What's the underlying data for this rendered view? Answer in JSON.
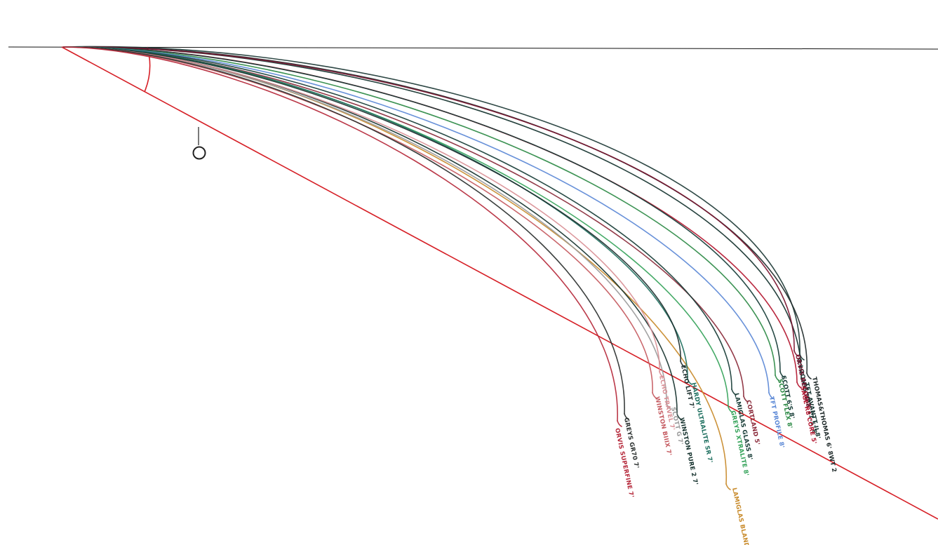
{
  "diagram": {
    "angle_label": "O",
    "colors": {
      "baseline": "#111111",
      "incline": "#d61f26",
      "callout": "#222222"
    },
    "rods": [
      {
        "id": "r1",
        "label": "G.LOOMIS NRX 11.5' 8",
        "color": "#1d3a36"
      },
      {
        "id": "r2",
        "label": "THOMAS&THOMAS 6' 8WT 2",
        "color": "#1f2a2a"
      },
      {
        "id": "r3",
        "label": "TFT AVANTT II 8'",
        "color": "#13322e"
      },
      {
        "id": "r4",
        "label": "ORVIS RECON 8'",
        "color": "#7a1530"
      },
      {
        "id": "r5",
        "label": "SAGE R8 CORE 5'",
        "color": "#b3162f"
      },
      {
        "id": "r6",
        "label": "SCOTT 6'S 8'",
        "color": "#153b36"
      },
      {
        "id": "r7",
        "label": "SCOTT FLEX 8'",
        "color": "#2c8a45"
      },
      {
        "id": "r8",
        "label": "TFT PROFILE 8'",
        "color": "#5b88d6"
      },
      {
        "id": "r9",
        "label": "CORTLAND 5'",
        "color": "#8a2a3a"
      },
      {
        "id": "r10",
        "label": "LAMIGLAS GLASS 8'",
        "color": "#173c36"
      },
      {
        "id": "r11",
        "label": "GREYS XTRALITE 8'",
        "color": "#35a35a"
      },
      {
        "id": "r12",
        "label": "LAMIGLAS BLAND CC",
        "color": "#c88a2a"
      },
      {
        "id": "r13",
        "label": "HARDY ULTRALITE SR 7'",
        "color": "#1f7060"
      },
      {
        "id": "r14",
        "label": "ECHO LIFT 7'",
        "color": "#1b2e2c"
      },
      {
        "id": "r15",
        "label": "WINSTON PURE 2 7'",
        "color": "#17332f"
      },
      {
        "id": "r16",
        "label": "SCOTT G 7'",
        "color": "#9a9a9a"
      },
      {
        "id": "r17",
        "label": "ECHO TRAVEL 7'",
        "color": "#d98f95"
      },
      {
        "id": "r18",
        "label": "WINSTON BIIIX 7'",
        "color": "#c55a60"
      },
      {
        "id": "r19",
        "label": "GREYS GR70 7'",
        "color": "#2a2f2e"
      },
      {
        "id": "r20",
        "label": "ORVIS SUPERFINE 7'",
        "color": "#b5283a"
      }
    ]
  }
}
